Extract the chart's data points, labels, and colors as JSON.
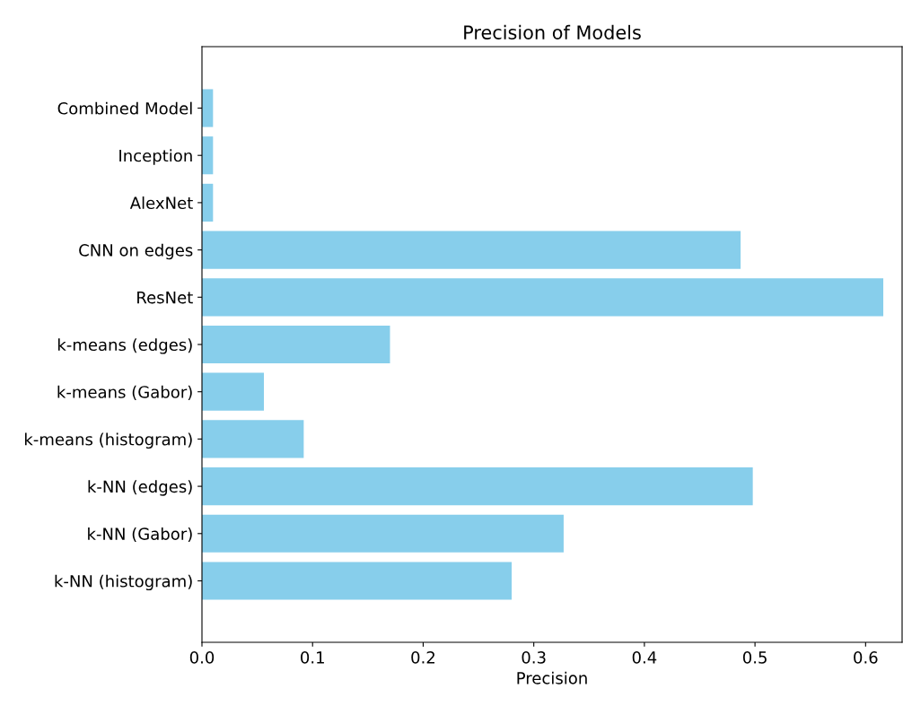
{
  "chart_data": {
    "type": "bar",
    "orientation": "horizontal",
    "title": "Precision of Models",
    "xlabel": "Precision",
    "categories": [
      "Combined Model",
      "Inception",
      "AlexNet",
      "CNN on edges",
      "ResNet",
      "k-means (edges)",
      "k-means (Gabor)",
      "k-means (histogram)",
      "k-NN (edges)",
      "k-NN (Gabor)",
      "k-NN (histogram)"
    ],
    "values": [
      0.01,
      0.01,
      0.01,
      0.487,
      0.616,
      0.17,
      0.056,
      0.092,
      0.498,
      0.327,
      0.28
    ],
    "color": "#87ceeb",
    "xlim": [
      0,
      0.633
    ],
    "xticks": [
      {
        "value": 0,
        "label": "0.0"
      },
      0.1,
      0.2,
      0.3,
      0.4,
      0.5,
      0.6
    ]
  }
}
